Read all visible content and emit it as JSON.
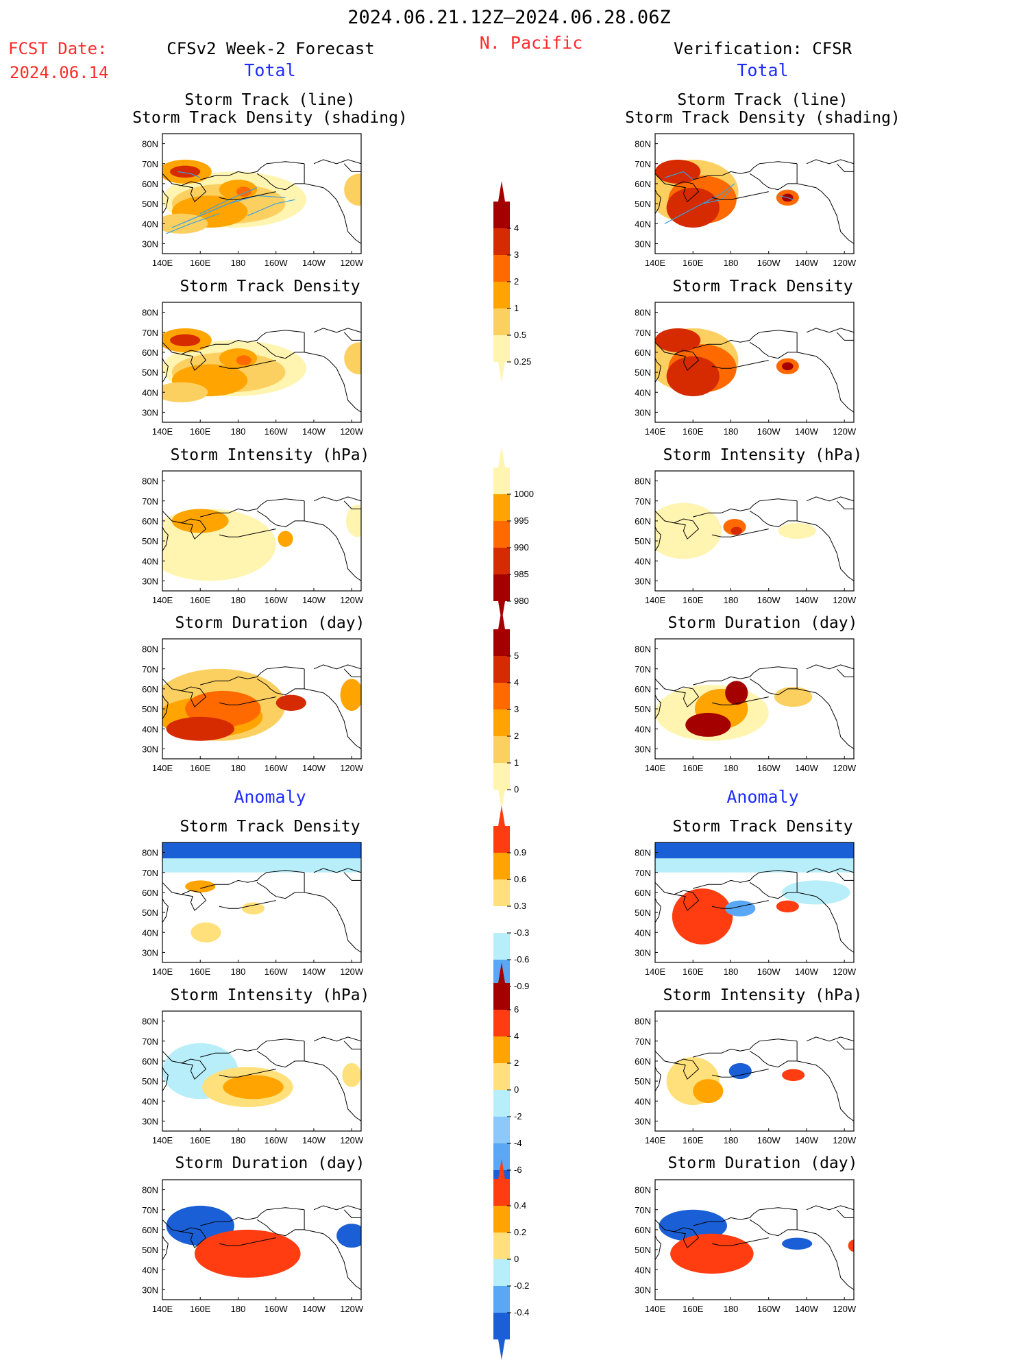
{
  "header": {
    "period": "2024.06.21.12Z–2024.06.28.06Z",
    "region": "N. Pacific",
    "fcst_label": "FCST Date:",
    "fcst_date": "2024.06.14",
    "left_title": "CFSv2 Week-2 Forecast",
    "right_title": "Verification: CFSR",
    "total_label": "Total",
    "anomaly_label": "Anomaly"
  },
  "panel_titles": {
    "track_line": "Storm Track (line)",
    "track_shading": "Storm Track Density (shading)",
    "density": "Storm Track Density",
    "intensity": "Storm Intensity (hPa)",
    "duration": "Storm Duration (day)"
  },
  "axes": {
    "lat_ticks": [
      "80N",
      "70N",
      "60N",
      "50N",
      "40N",
      "30N"
    ],
    "lon_ticks": [
      "140E",
      "160E",
      "180",
      "160W",
      "140W",
      "120W"
    ]
  },
  "colorbars": {
    "density_total": {
      "labels": [
        "4",
        "3",
        "2",
        "1",
        "0.5",
        "0.25"
      ],
      "colors": [
        "#a50000",
        "#d62a00",
        "#ff6a00",
        "#ffa400",
        "#fcd060",
        "#fff4b0"
      ]
    },
    "intensity_total": {
      "labels": [
        "1000",
        "995",
        "990",
        "985",
        "980"
      ],
      "colors": [
        "#fff4b0",
        "#ffa400",
        "#ff6a00",
        "#d62a00",
        "#a50000"
      ]
    },
    "duration_total": {
      "labels": [
        "5",
        "4",
        "3",
        "2",
        "1",
        "0"
      ],
      "colors": [
        "#a50000",
        "#d62a00",
        "#ff6a00",
        "#ffa400",
        "#fcd060",
        "#fff4b0"
      ]
    },
    "density_anom": {
      "labels": [
        "0.9",
        "0.6",
        "0.3",
        "-0.3",
        "-0.6",
        "-0.9"
      ],
      "colors": [
        "#ff3d10",
        "#ffa400",
        "#ffe07a",
        "#ffffff",
        "#b8eefa",
        "#5aa8f5",
        "#1b5fd6"
      ]
    },
    "intensity_anom": {
      "labels": [
        "6",
        "4",
        "2",
        "0",
        "-2",
        "-4",
        "-6"
      ],
      "colors": [
        "#a50000",
        "#ff3d10",
        "#ffa400",
        "#ffe07a",
        "#b8eefa",
        "#8cc8fa",
        "#5aa8f5",
        "#1b5fd6"
      ]
    },
    "duration_anom": {
      "labels": [
        "0.4",
        "0.2",
        "0",
        "-0.2",
        "-0.4"
      ],
      "colors": [
        "#ff3d10",
        "#ffa400",
        "#ffe07a",
        "#b8eefa",
        "#5aa8f5",
        "#1b5fd6"
      ]
    }
  },
  "chart_data": {
    "type": "heatmap",
    "lon_range": [
      "140E",
      "115W"
    ],
    "lat_range": [
      "25N",
      "85N"
    ],
    "panels": [
      "forecast",
      "verification"
    ],
    "rows": [
      "track_line_and_density",
      "density",
      "intensity",
      "duration",
      "density_anomaly",
      "intensity_anomaly",
      "duration_anomaly"
    ]
  }
}
